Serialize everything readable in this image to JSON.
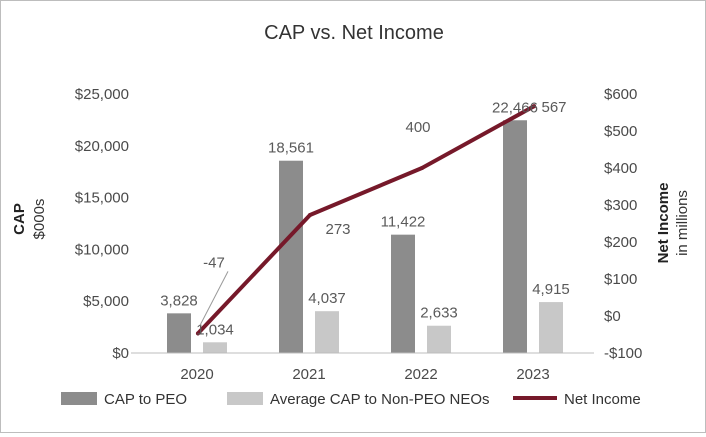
{
  "chart_data": {
    "type": "bar+line",
    "title": "CAP vs. Net Income",
    "categories": [
      "2020",
      "2021",
      "2022",
      "2023"
    ],
    "left_axis": {
      "title": "CAP",
      "subtitle": "$000s",
      "min": 0,
      "max": 25000,
      "ticks": [
        0,
        5000,
        10000,
        15000,
        20000,
        25000
      ],
      "tick_labels": [
        "$0",
        "$5,000",
        "$10,000",
        "$15,000",
        "$20,000",
        "$25,000"
      ]
    },
    "right_axis": {
      "title": "Net Income",
      "subtitle": "in millions",
      "min": -100,
      "max": 600,
      "ticks": [
        -100,
        0,
        100,
        200,
        300,
        400,
        500,
        600
      ],
      "tick_labels": [
        "-$100",
        "$0",
        "$100",
        "$200",
        "$300",
        "$400",
        "$500",
        "$600"
      ]
    },
    "series": [
      {
        "name": "CAP to PEO",
        "type": "bar",
        "axis": "left",
        "color": "#8c8c8c",
        "values": [
          3828,
          18561,
          11422,
          22466
        ],
        "labels": [
          "3,828",
          "18,561",
          "11,422",
          "22,466"
        ]
      },
      {
        "name": "Average CAP to Non-PEO NEOs",
        "type": "bar",
        "axis": "left",
        "color": "#c8c8c8",
        "values": [
          1034,
          4037,
          2633,
          4915
        ],
        "labels": [
          "1,034",
          "4,037",
          "2,633",
          "4,915"
        ]
      },
      {
        "name": "Net Income",
        "type": "line",
        "axis": "right",
        "color": "#76192a",
        "values": [
          -47,
          273,
          400,
          567
        ],
        "labels": [
          "-47",
          "273",
          "400",
          "567"
        ]
      }
    ],
    "legend_position": "bottom"
  }
}
